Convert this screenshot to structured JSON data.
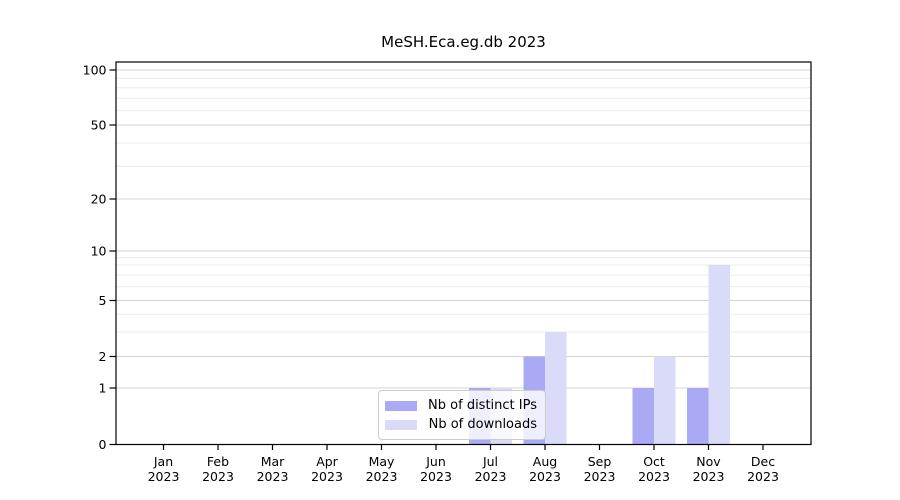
{
  "chart_data": {
    "type": "bar",
    "title": "MeSH.Eca.eg.db 2023",
    "categories": [
      "Jan 2023",
      "Feb 2023",
      "Mar 2023",
      "Apr 2023",
      "May 2023",
      "Jun 2023",
      "Jul 2023",
      "Aug 2023",
      "Sep 2023",
      "Oct 2023",
      "Nov 2023",
      "Dec 2023"
    ],
    "series": [
      {
        "name": "Nb of distinct IPs",
        "color": "#a9a9f4",
        "values": [
          0,
          0,
          0,
          0,
          0,
          0,
          1,
          2,
          0,
          1,
          1,
          0
        ]
      },
      {
        "name": "Nb of downloads",
        "color": "#dadaf9",
        "values": [
          0,
          0,
          0,
          0,
          0,
          0,
          1,
          3,
          0,
          2,
          8,
          0
        ]
      }
    ],
    "yticks": [
      0,
      1,
      2,
      5,
      10,
      20,
      50,
      100
    ],
    "yscale": "log",
    "ylim": [
      0,
      130
    ],
    "xlabel": "",
    "ylabel": "",
    "grid": true,
    "legend_position": "inside-bottom-center",
    "colors": {
      "axis": "#000000",
      "major_grid": "#d4d4d4",
      "minor_grid": "#ebebeb",
      "text": "#000000",
      "background": "#ffffff"
    }
  }
}
